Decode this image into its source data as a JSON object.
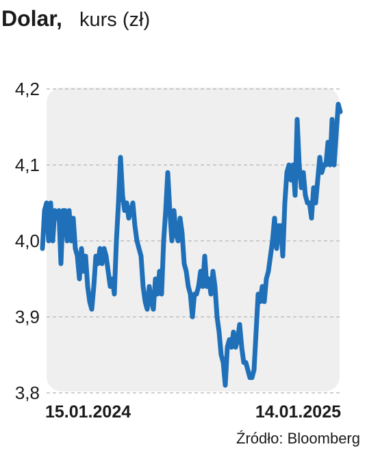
{
  "chart_data": {
    "type": "line",
    "title": "Dolar,",
    "subtitle": "kurs (zł)",
    "source": "Źródło: Bloomberg",
    "categories": [
      "15.01.2024",
      null,
      null,
      null,
      null,
      null,
      null,
      null,
      null,
      null,
      null,
      null,
      null,
      null,
      null,
      null,
      null,
      null,
      null,
      null,
      null,
      null,
      null,
      null,
      null,
      null,
      null,
      null,
      null,
      null,
      null,
      null,
      null,
      null,
      null,
      null,
      null,
      null,
      null,
      null,
      null,
      null,
      null,
      null,
      null,
      null,
      null,
      null,
      null,
      null,
      null,
      null,
      null,
      null,
      null,
      null,
      null,
      null,
      null,
      null,
      null,
      null,
      null,
      null,
      null,
      null,
      null,
      null,
      null,
      null,
      null,
      null,
      null,
      null,
      null,
      null,
      null,
      null,
      null,
      null,
      null,
      null,
      null,
      null,
      null,
      null,
      null,
      null,
      null,
      null,
      null,
      null,
      null,
      null,
      null,
      null,
      null,
      null,
      null,
      null,
      null,
      null,
      null,
      null,
      null,
      null,
      null,
      null,
      null,
      null,
      null,
      null,
      null,
      null,
      null,
      null,
      null,
      null,
      null,
      null,
      null,
      null,
      null,
      null,
      null,
      null,
      null,
      null,
      null,
      null,
      null,
      null,
      null,
      null,
      null,
      null,
      null,
      null,
      null,
      null,
      null,
      null,
      null,
      null,
      null,
      "14.01.2025"
    ],
    "values": [
      3.99,
      4.04,
      4.05,
      4.0,
      4.05,
      4.0,
      4.04,
      4.03,
      4.04,
      3.97,
      4.04,
      4.04,
      4.0,
      4.04,
      4.0,
      4.03,
      3.99,
      3.98,
      3.95,
      3.99,
      3.96,
      3.98,
      3.94,
      3.92,
      3.91,
      3.94,
      3.98,
      3.97,
      3.99,
      3.97,
      3.99,
      3.98,
      3.96,
      3.94,
      3.95,
      3.93,
      4.0,
      4.05,
      4.11,
      4.06,
      4.04,
      4.05,
      4.03,
      4.04,
      4.05,
      4.02,
      4.0,
      3.99,
      3.98,
      3.94,
      3.92,
      3.91,
      3.94,
      3.92,
      3.91,
      3.95,
      3.93,
      3.96,
      3.93,
      4.0,
      4.04,
      4.09,
      4.04,
      4.0,
      4.04,
      4.01,
      4.0,
      4.03,
      4.01,
      3.97,
      3.96,
      3.94,
      3.93,
      3.9,
      3.93,
      3.93,
      3.94,
      3.96,
      3.94,
      3.98,
      3.94,
      3.95,
      3.93,
      3.96,
      3.94,
      3.9,
      3.88,
      3.85,
      3.84,
      3.81,
      3.86,
      3.87,
      3.86,
      3.88,
      3.86,
      3.87,
      3.89,
      3.86,
      3.84,
      3.84,
      3.83,
      3.82,
      3.82,
      3.83,
      3.88,
      3.93,
      3.92,
      3.94,
      3.92,
      3.95,
      3.96,
      3.98,
      4.0,
      4.03,
      3.99,
      4.02,
      4.02,
      3.98,
      4.05,
      4.09,
      4.1,
      4.08,
      4.1,
      4.06,
      4.16,
      4.1,
      4.07,
      4.09,
      4.06,
      4.05,
      4.05,
      4.03,
      4.07,
      4.05,
      4.08,
      4.11,
      4.09,
      4.1,
      4.1,
      4.13,
      4.1,
      4.16,
      4.1,
      4.14,
      4.18,
      4.17
    ],
    "color": "#1f70b8",
    "ylim": [
      3.8,
      4.2
    ],
    "yticks": [
      {
        "value": 3.8,
        "label": "3,8"
      },
      {
        "value": 3.9,
        "label": "3,9"
      },
      {
        "value": 4.0,
        "label": "4,0"
      },
      {
        "value": 4.1,
        "label": "4,1"
      },
      {
        "value": 4.2,
        "label": "4,2"
      }
    ],
    "grid": true
  }
}
